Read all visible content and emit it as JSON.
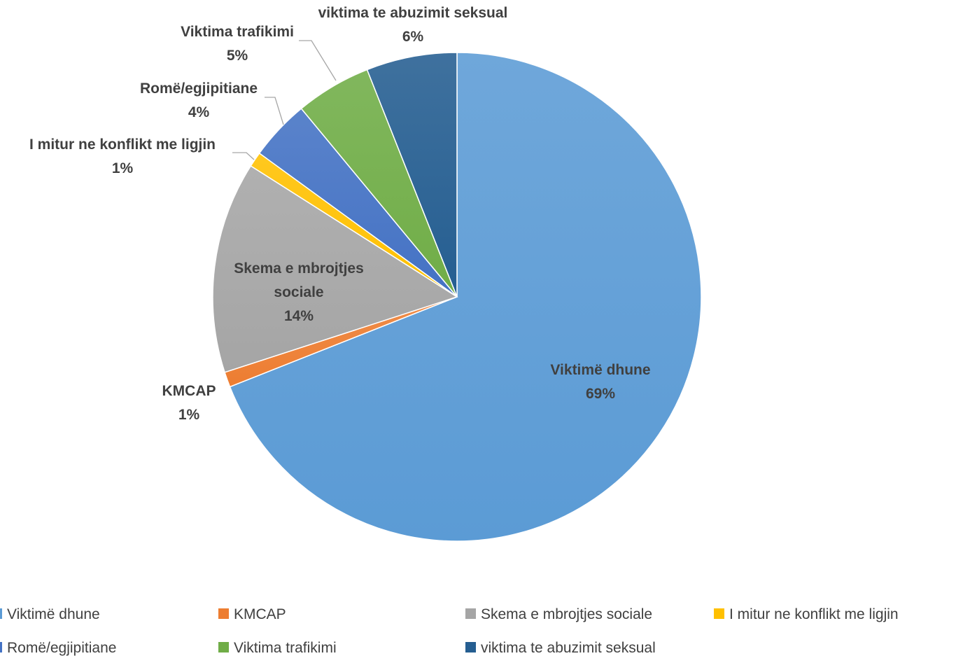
{
  "chart_data": {
    "type": "pie",
    "title": "",
    "slices": [
      {
        "label": "Viktimë dhune",
        "value": 69,
        "value_label": "69%",
        "color": "#5b9bd5"
      },
      {
        "label": "KMCAP",
        "value": 1,
        "value_label": "1%",
        "color": "#ed7d31"
      },
      {
        "label": "Skema e mbrojtjes sociale",
        "value": 14,
        "value_label": "14%",
        "color": "#a5a5a5"
      },
      {
        "label": "I mitur ne konflikt me ligjin",
        "value": 1,
        "value_label": "1%",
        "color": "#ffc000"
      },
      {
        "label": "Romë/egjipitiane",
        "value": 4,
        "value_label": "4%",
        "color": "#4472c4"
      },
      {
        "label": "Viktima trafikimi",
        "value": 5,
        "value_label": "5%",
        "color": "#70ad47"
      },
      {
        "label": "viktima te abuzimit seksual",
        "value": 6,
        "value_label": "6%",
        "color": "#255e91"
      }
    ],
    "legend": {
      "position": "bottom",
      "items": [
        "Viktimë dhune",
        "KMCAP",
        "Skema e mbrojtjes sociale",
        "I mitur ne konflikt me ligjin",
        "Romë/egjipitiane",
        "Viktima trafikimi",
        "viktima te abuzimit seksual"
      ]
    }
  }
}
